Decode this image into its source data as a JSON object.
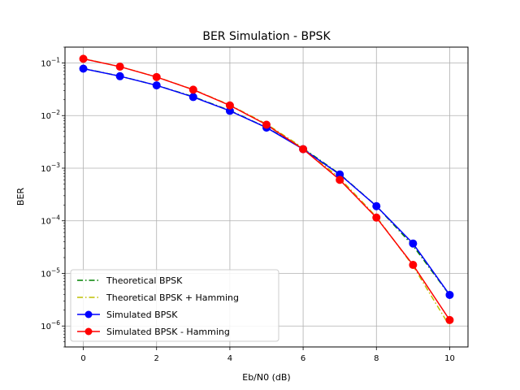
{
  "chart_data": {
    "type": "line",
    "title": "BER Simulation - BPSK",
    "xlabel": "Eb/N0 (dB)",
    "ylabel": "BER",
    "xlim": [
      -0.5,
      10.5
    ],
    "ylim": [
      4e-07,
      0.2
    ],
    "yscale": "log",
    "grid": true,
    "legend": "lower-left",
    "x_ticks": [
      {
        "value": 0,
        "label": "0"
      },
      {
        "value": 2,
        "label": "2"
      },
      {
        "value": 4,
        "label": "4"
      },
      {
        "value": 6,
        "label": "6"
      },
      {
        "value": 8,
        "label": "8"
      },
      {
        "value": 10,
        "label": "10"
      }
    ],
    "y_ticks": [
      {
        "value": 0.1,
        "base": "10",
        "exp": "−1"
      },
      {
        "value": 0.01,
        "base": "10",
        "exp": "−2"
      },
      {
        "value": 0.001,
        "base": "10",
        "exp": "−3"
      },
      {
        "value": 0.0001,
        "base": "10",
        "exp": "−4"
      },
      {
        "value": 1e-05,
        "base": "10",
        "exp": "−5"
      },
      {
        "value": 1e-06,
        "base": "10",
        "exp": "−6"
      }
    ],
    "x": [
      0,
      1,
      2,
      3,
      4,
      5,
      6,
      7,
      8,
      9,
      10
    ],
    "series": [
      {
        "name": "Theoretical BPSK",
        "color": "#008000",
        "style": "dashdot",
        "marker": "none",
        "values": [
          0.0786,
          0.0563,
          0.0375,
          0.0229,
          0.0125,
          0.00595,
          0.00239,
          0.000773,
          0.000191,
          3.36e-05,
          3.87e-06
        ]
      },
      {
        "name": "Theoretical BPSK + Hamming",
        "color": "#bfbf00",
        "style": "dashdot",
        "marker": "none",
        "values": [
          0.121,
          0.0853,
          0.0542,
          0.0312,
          0.0159,
          0.0069,
          0.00243,
          0.000645,
          0.000119,
          1.39e-05,
          9.9e-07
        ]
      },
      {
        "name": "Simulated BPSK",
        "color": "#0000ff",
        "style": "solid",
        "marker": "circle",
        "values": [
          0.078,
          0.056,
          0.0375,
          0.0225,
          0.0123,
          0.0059,
          0.0023,
          0.00076,
          0.00019,
          3.7e-05,
          3.9e-06
        ]
      },
      {
        "name": "Simulated BPSK - Hamming",
        "color": "#ff0000",
        "style": "solid",
        "marker": "circle",
        "values": [
          0.12,
          0.085,
          0.054,
          0.031,
          0.0156,
          0.0067,
          0.0023,
          0.0006,
          0.000115,
          1.45e-05,
          1.3e-06
        ]
      }
    ]
  }
}
